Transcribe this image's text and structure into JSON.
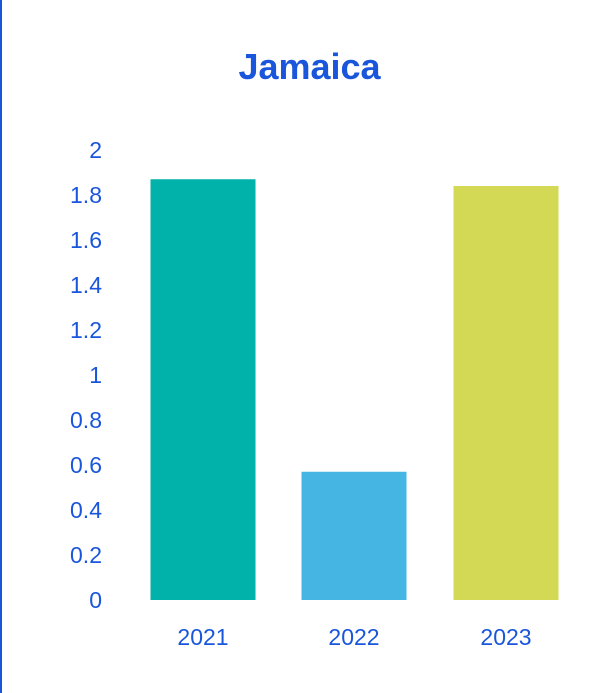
{
  "chart_data": {
    "type": "bar",
    "title": "Jamaica",
    "xlabel": "",
    "ylabel": "",
    "categories": [
      "2021",
      "2022",
      "2023"
    ],
    "values": [
      1.87,
      0.57,
      1.84
    ],
    "ylim": [
      0,
      2
    ],
    "yticks": [
      "0",
      "0.2",
      "0.4",
      "0.6",
      "0.8",
      "1",
      "1.2",
      "1.4",
      "1.6",
      "1.8",
      "2"
    ],
    "colors": [
      "#00b2a9",
      "#45b5e3",
      "#d4d955"
    ],
    "grid": false,
    "legend": "none"
  }
}
